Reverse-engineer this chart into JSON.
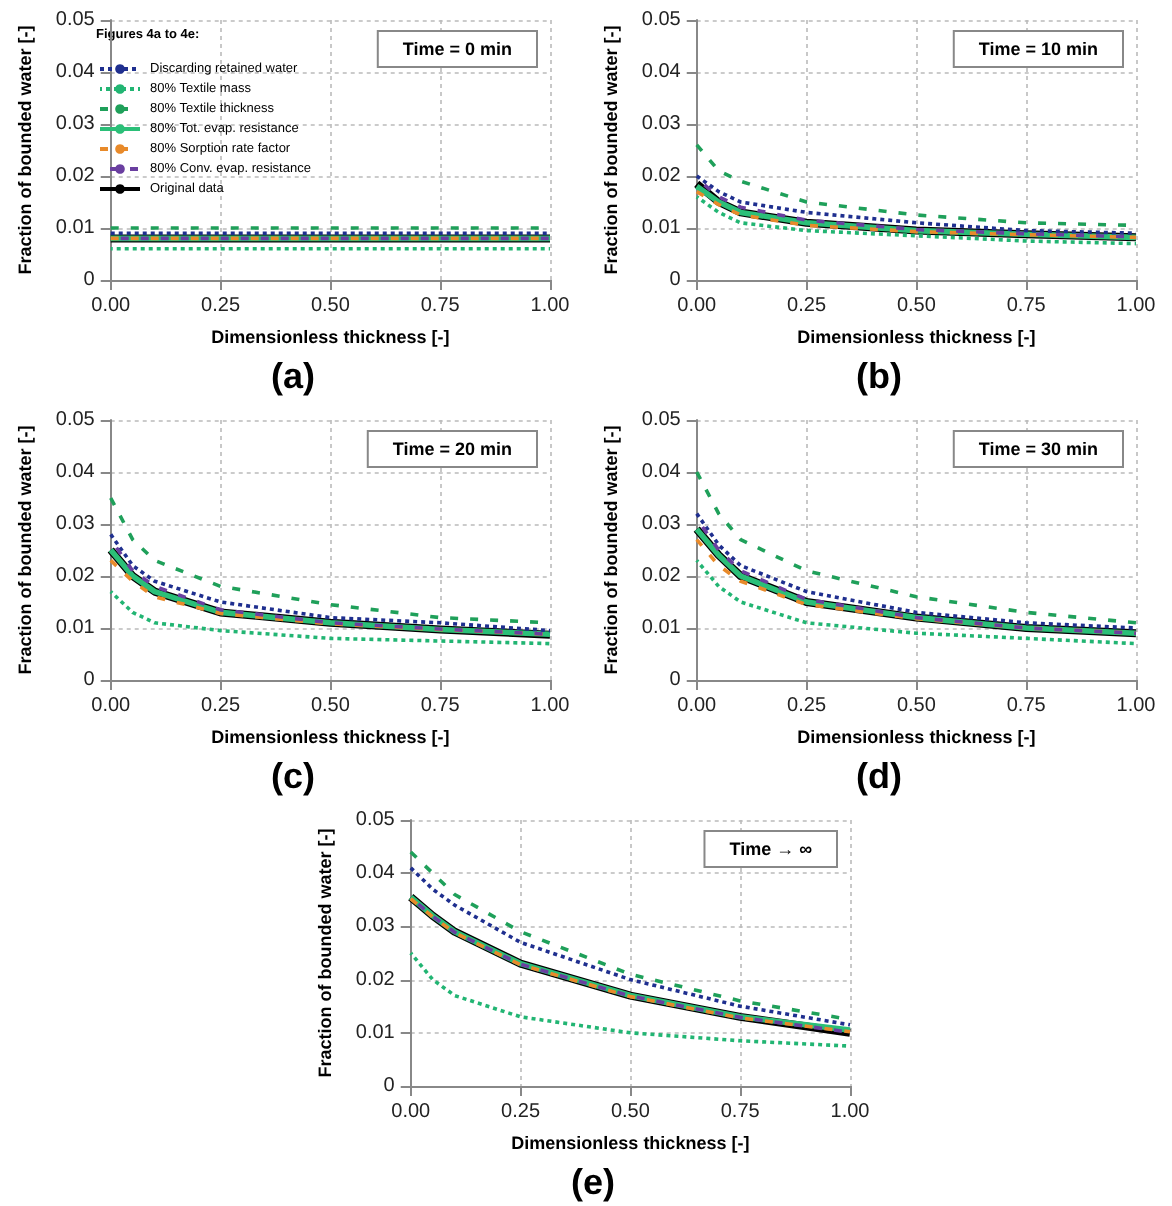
{
  "chart_data": [
    {
      "type": "line",
      "xlabel": "Dimensionless thickness [-]",
      "ylabel": "Fraction of bounded water [-]",
      "legend_title": "Figures 4a to 4e:",
      "legend": "top left",
      "grid": true,
      "marker": "none",
      "annotations": [
        "Time = 0 min",
        "(a)"
      ],
      "xlim": [
        0,
        1
      ],
      "ylim": [
        0,
        0.05
      ],
      "xticks": [
        {
          "value": 0,
          "label": "0.00"
        },
        {
          "value": 0.25,
          "label": "0.25"
        },
        {
          "value": 0.5,
          "label": "0.50"
        },
        {
          "value": 0.75,
          "label": "0.75"
        },
        {
          "value": 1,
          "label": "1.00"
        }
      ],
      "yticks": [
        0,
        0.01,
        0.02,
        0.03,
        0.04,
        0.05
      ],
      "x": [
        0,
        1
      ],
      "series": [
        {
          "name": "Discarding retained water",
          "color": "#1f2f8f",
          "line_style": "dotted",
          "values": [
            0.009,
            0.009
          ]
        },
        {
          "name": "80% Textile mass",
          "color": "#22b573",
          "line_style": "dotted",
          "values": [
            0.006,
            0.006
          ]
        },
        {
          "name": "80% Textile thickness",
          "color": "#1fa05a",
          "line_style": "dashed",
          "values": [
            0.01,
            0.01
          ]
        },
        {
          "name": "80% Tot. evap. resistance",
          "color": "#2bbf78",
          "line_style": "solid",
          "values": [
            0.008,
            0.008
          ]
        },
        {
          "name": "80% Sorption rate factor",
          "color": "#e88a2a",
          "line_style": "dashed",
          "values": [
            0.008,
            0.008
          ]
        },
        {
          "name": "80% Conv. evap. resistance",
          "color": "#6a3fa0",
          "line_style": "dashed",
          "values": [
            0.008,
            0.008
          ]
        },
        {
          "name": "Original data",
          "color": "#000000",
          "line_style": "solid",
          "values": [
            0.008,
            0.008
          ]
        }
      ]
    },
    {
      "type": "line",
      "xlabel": "Dimensionless thickness [-]",
      "ylabel": "Fraction of bounded water [-]",
      "grid": true,
      "marker": "none",
      "annotations": [
        "Time = 10 min",
        "(b)"
      ],
      "xlim": [
        0,
        1
      ],
      "ylim": [
        0,
        0.05
      ],
      "xticks": [
        {
          "value": 0,
          "label": "0.00"
        },
        {
          "value": 0.25,
          "label": "0.25"
        },
        {
          "value": 0.5,
          "label": "0.50"
        },
        {
          "value": 0.75,
          "label": "0.75"
        },
        {
          "value": 1,
          "label": "1.00"
        }
      ],
      "yticks": [
        0,
        0.01,
        0.02,
        0.03,
        0.04,
        0.05
      ],
      "x": [
        0,
        0.05,
        0.1,
        0.25,
        0.5,
        0.75,
        1
      ],
      "series": [
        {
          "color": "#1f2f8f",
          "line_style": "dotted",
          "values": [
            0.02,
            0.017,
            0.015,
            0.013,
            0.011,
            0.0095,
            0.009
          ]
        },
        {
          "color": "#22b573",
          "line_style": "dotted",
          "values": [
            0.016,
            0.013,
            0.011,
            0.0095,
            0.0085,
            0.0075,
            0.007
          ]
        },
        {
          "color": "#1fa05a",
          "line_style": "dashed",
          "values": [
            0.026,
            0.021,
            0.019,
            0.015,
            0.0125,
            0.011,
            0.0105
          ]
        },
        {
          "color": "#2bbf78",
          "line_style": "solid",
          "values": [
            0.018,
            0.015,
            0.013,
            0.011,
            0.0095,
            0.0088,
            0.0082
          ]
        },
        {
          "color": "#e88a2a",
          "line_style": "dashed",
          "values": [
            0.017,
            0.0145,
            0.0125,
            0.0105,
            0.0093,
            0.0087,
            0.0082
          ]
        },
        {
          "color": "#6a3fa0",
          "line_style": "dashed",
          "values": [
            0.0195,
            0.016,
            0.014,
            0.0115,
            0.0097,
            0.0089,
            0.0083
          ]
        },
        {
          "color": "#000000",
          "line_style": "solid",
          "values": [
            0.0185,
            0.015,
            0.013,
            0.011,
            0.0095,
            0.0088,
            0.0082
          ]
        }
      ]
    },
    {
      "type": "line",
      "xlabel": "Dimensionless thickness [-]",
      "ylabel": "Fraction of bounded water [-]",
      "grid": true,
      "marker": "none",
      "annotations": [
        "Time = 20 min",
        "(c)"
      ],
      "xlim": [
        0,
        1
      ],
      "ylim": [
        0,
        0.05
      ],
      "xticks": [
        {
          "value": 0,
          "label": "0.00"
        },
        {
          "value": 0.25,
          "label": "0.25"
        },
        {
          "value": 0.5,
          "label": "0.50"
        },
        {
          "value": 0.75,
          "label": "0.75"
        },
        {
          "value": 1,
          "label": "1.00"
        }
      ],
      "yticks": [
        0,
        0.01,
        0.02,
        0.03,
        0.04,
        0.05
      ],
      "x": [
        0,
        0.05,
        0.1,
        0.25,
        0.5,
        0.75,
        1
      ],
      "series": [
        {
          "color": "#1f2f8f",
          "line_style": "dotted",
          "values": [
            0.028,
            0.022,
            0.019,
            0.015,
            0.012,
            0.011,
            0.0095
          ]
        },
        {
          "color": "#22b573",
          "line_style": "dotted",
          "values": [
            0.017,
            0.013,
            0.011,
            0.0095,
            0.008,
            0.0075,
            0.007
          ]
        },
        {
          "color": "#1fa05a",
          "line_style": "dashed",
          "values": [
            0.035,
            0.027,
            0.023,
            0.018,
            0.0145,
            0.012,
            0.011
          ]
        },
        {
          "color": "#2bbf78",
          "line_style": "solid",
          "values": [
            0.025,
            0.02,
            0.017,
            0.013,
            0.011,
            0.0097,
            0.0088
          ]
        },
        {
          "color": "#e88a2a",
          "line_style": "dashed",
          "values": [
            0.023,
            0.019,
            0.016,
            0.0128,
            0.0108,
            0.0097,
            0.0088
          ]
        },
        {
          "color": "#6a3fa0",
          "line_style": "dashed",
          "values": [
            0.027,
            0.021,
            0.018,
            0.0135,
            0.011,
            0.0098,
            0.0088
          ]
        },
        {
          "color": "#000000",
          "line_style": "solid",
          "values": [
            0.025,
            0.02,
            0.017,
            0.013,
            0.011,
            0.0097,
            0.0087
          ]
        }
      ]
    },
    {
      "type": "line",
      "xlabel": "Dimensionless thickness [-]",
      "ylabel": "Fraction of bounded water [-]",
      "grid": true,
      "marker": "none",
      "annotations": [
        "Time = 30 min",
        "(d)"
      ],
      "xlim": [
        0,
        1
      ],
      "ylim": [
        0,
        0.05
      ],
      "xticks": [
        {
          "value": 0,
          "label": "0.00"
        },
        {
          "value": 0.25,
          "label": "0.25"
        },
        {
          "value": 0.5,
          "label": "0.50"
        },
        {
          "value": 0.75,
          "label": "0.75"
        },
        {
          "value": 1,
          "label": "1.00"
        }
      ],
      "yticks": [
        0,
        0.01,
        0.02,
        0.03,
        0.04,
        0.05
      ],
      "x": [
        0,
        0.05,
        0.1,
        0.25,
        0.5,
        0.75,
        1
      ],
      "series": [
        {
          "color": "#1f2f8f",
          "line_style": "dotted",
          "values": [
            0.032,
            0.026,
            0.022,
            0.017,
            0.013,
            0.011,
            0.01
          ]
        },
        {
          "color": "#22b573",
          "line_style": "dotted",
          "values": [
            0.023,
            0.018,
            0.015,
            0.011,
            0.009,
            0.008,
            0.007
          ]
        },
        {
          "color": "#1fa05a",
          "line_style": "dashed",
          "values": [
            0.04,
            0.032,
            0.027,
            0.021,
            0.016,
            0.013,
            0.011
          ]
        },
        {
          "color": "#2bbf78",
          "line_style": "solid",
          "values": [
            0.029,
            0.024,
            0.02,
            0.015,
            0.012,
            0.01,
            0.009
          ]
        },
        {
          "color": "#e88a2a",
          "line_style": "dashed",
          "values": [
            0.027,
            0.022,
            0.019,
            0.0145,
            0.0118,
            0.01,
            0.009
          ]
        },
        {
          "color": "#6a3fa0",
          "line_style": "dashed",
          "values": [
            0.031,
            0.025,
            0.021,
            0.0155,
            0.012,
            0.01,
            0.009
          ]
        },
        {
          "color": "#000000",
          "line_style": "solid",
          "values": [
            0.029,
            0.024,
            0.02,
            0.015,
            0.012,
            0.01,
            0.009
          ]
        }
      ]
    },
    {
      "type": "line",
      "xlabel": "Dimensionless thickness [-]",
      "ylabel": "Fraction of bounded water [-]",
      "grid": true,
      "marker": "none",
      "annotations": [
        "Time → ∞",
        "(e)"
      ],
      "xlim": [
        0,
        1
      ],
      "ylim": [
        0,
        0.05
      ],
      "xticks": [
        {
          "value": 0,
          "label": "0.00"
        },
        {
          "value": 0.25,
          "label": "0.25"
        },
        {
          "value": 0.5,
          "label": "0.50"
        },
        {
          "value": 0.75,
          "label": "0.75"
        },
        {
          "value": 1,
          "label": "1.00"
        }
      ],
      "yticks": [
        0,
        0.01,
        0.02,
        0.03,
        0.04,
        0.05
      ],
      "x": [
        0,
        0.05,
        0.1,
        0.25,
        0.5,
        0.75,
        1
      ],
      "series": [
        {
          "color": "#1f2f8f",
          "line_style": "dotted",
          "values": [
            0.041,
            0.037,
            0.034,
            0.027,
            0.02,
            0.015,
            0.0115
          ]
        },
        {
          "color": "#22b573",
          "line_style": "dotted",
          "values": [
            0.025,
            0.02,
            0.017,
            0.013,
            0.01,
            0.0085,
            0.0075
          ]
        },
        {
          "color": "#1fa05a",
          "line_style": "dashed",
          "values": [
            0.044,
            0.04,
            0.036,
            0.029,
            0.021,
            0.016,
            0.0125
          ]
        },
        {
          "color": "#2bbf78",
          "line_style": "solid",
          "values": [
            0.0355,
            0.032,
            0.029,
            0.023,
            0.017,
            0.013,
            0.0105
          ]
        },
        {
          "color": "#e88a2a",
          "line_style": "dashed",
          "values": [
            0.0352,
            0.0318,
            0.0288,
            0.0228,
            0.0168,
            0.0128,
            0.0102
          ]
        },
        {
          "color": "#6a3fa0",
          "line_style": "dashed",
          "values": [
            0.0354,
            0.0319,
            0.0289,
            0.0229,
            0.0169,
            0.0129,
            0.0101
          ]
        },
        {
          "color": "#000000",
          "line_style": "solid",
          "values": [
            0.0355,
            0.032,
            0.029,
            0.023,
            0.017,
            0.013,
            0.01
          ]
        }
      ]
    }
  ]
}
